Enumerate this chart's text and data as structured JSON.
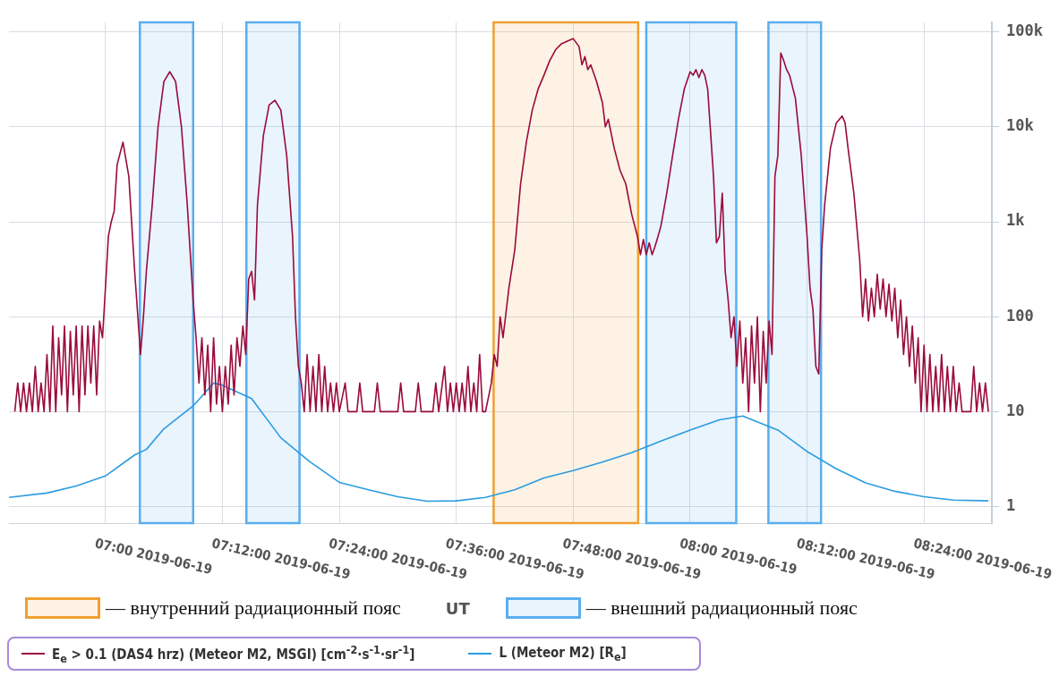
{
  "chart_data": {
    "type": "line",
    "xlabel": "UT",
    "log": "y",
    "grid": true,
    "legend": "bottom",
    "xlim": [
      "2019-06-19T06:50:06",
      "2019-06-19T08:30:58"
    ],
    "xticks": [
      {
        "value": "2019-06-19T07:00",
        "label": "07:00 2019-06-19"
      },
      {
        "value": "2019-06-19T07:12",
        "label": "07:12:00 2019-06-19"
      },
      {
        "value": "2019-06-19T07:24",
        "label": "07:24:00 2019-06-19"
      },
      {
        "value": "2019-06-19T07:36",
        "label": "07:36:00 2019-06-19"
      },
      {
        "value": "2019-06-19T07:48",
        "label": "07:48:00 2019-06-19"
      },
      {
        "value": "2019-06-19T08:00",
        "label": "08:00 2019-06-19"
      },
      {
        "value": "2019-06-19T08:12",
        "label": "08:12:00 2019-06-19"
      },
      {
        "value": "2019-06-19T08:24",
        "label": "08:24:00 2019-06-19"
      }
    ],
    "ylim": [
      0.67,
      126000
    ],
    "yticks": [
      1,
      10,
      100,
      {
        "value": 1000,
        "label": "1k"
      },
      {
        "value": 10000,
        "label": "10k"
      },
      {
        "value": 100000,
        "label": "100k"
      }
    ],
    "bands": [
      {
        "axis": "x",
        "from": "2019-06-19T07:39:50",
        "to": "2019-06-19T07:54:40",
        "label": "— внутренний радиационный пояс",
        "color": "#f0a030"
      },
      {
        "axis": "x",
        "from": "2019-06-19T07:03:32",
        "to": "2019-06-19T07:09:00",
        "label": "— внешний радиационный пояс",
        "color": "#5aaef0"
      },
      {
        "axis": "x",
        "from": "2019-06-19T07:14:28",
        "to": "2019-06-19T07:19:55",
        "color": "#5aaef0"
      },
      {
        "axis": "x",
        "from": "2019-06-19T07:55:30",
        "to": "2019-06-19T08:04:44",
        "color": "#5aaef0"
      },
      {
        "axis": "x",
        "from": "2019-06-19T08:08:02",
        "to": "2019-06-19T08:13:26",
        "color": "#5aaef0"
      }
    ],
    "series": [
      {
        "name": "E$_{e}$ > 0.1 (DAS4 hrz) (Meteor M2, MSGI) [cm$^{-2}$·s$^{-1}$·sr$^{-1}$]",
        "color": "#9a0a3c",
        "x": [
          "2019-06-19T06:50:42",
          "2019-06-19T06:51:00",
          "2019-06-19T06:51:18",
          "2019-06-19T06:51:36",
          "2019-06-19T06:51:54",
          "2019-06-19T06:52:12",
          "2019-06-19T06:52:30",
          "2019-06-19T06:52:48",
          "2019-06-19T06:53:06",
          "2019-06-19T06:53:24",
          "2019-06-19T06:53:42",
          "2019-06-19T06:54:00",
          "2019-06-19T06:54:18",
          "2019-06-19T06:54:36",
          "2019-06-19T06:54:54",
          "2019-06-19T06:55:12",
          "2019-06-19T06:55:30",
          "2019-06-19T06:55:48",
          "2019-06-19T06:56:06",
          "2019-06-19T06:56:24",
          "2019-06-19T06:56:42",
          "2019-06-19T06:57:00",
          "2019-06-19T06:57:18",
          "2019-06-19T06:57:36",
          "2019-06-19T06:57:54",
          "2019-06-19T06:58:12",
          "2019-06-19T06:58:30",
          "2019-06-19T06:58:48",
          "2019-06-19T06:59:06",
          "2019-06-19T06:59:24",
          "2019-06-19T06:59:42",
          "2019-06-19T07:00:00",
          "2019-06-19T07:00:18",
          "2019-06-19T07:00:36",
          "2019-06-19T07:00:54",
          "2019-06-19T07:01:12",
          "2019-06-19T07:01:48",
          "2019-06-19T07:02:24",
          "2019-06-19T07:03:00",
          "2019-06-19T07:03:36",
          "2019-06-19T07:03:54",
          "2019-06-19T07:04:12",
          "2019-06-19T07:04:48",
          "2019-06-19T07:05:24",
          "2019-06-19T07:06:00",
          "2019-06-19T07:06:36",
          "2019-06-19T07:07:12",
          "2019-06-19T07:07:48",
          "2019-06-19T07:08:24",
          "2019-06-19T07:09:00",
          "2019-06-19T07:09:18",
          "2019-06-19T07:09:36",
          "2019-06-19T07:09:54",
          "2019-06-19T07:10:12",
          "2019-06-19T07:10:30",
          "2019-06-19T07:10:48",
          "2019-06-19T07:11:06",
          "2019-06-19T07:11:24",
          "2019-06-19T07:11:42",
          "2019-06-19T07:12:00",
          "2019-06-19T07:12:18",
          "2019-06-19T07:12:36",
          "2019-06-19T07:12:54",
          "2019-06-19T07:13:12",
          "2019-06-19T07:13:30",
          "2019-06-19T07:13:48",
          "2019-06-19T07:14:06",
          "2019-06-19T07:14:24",
          "2019-06-19T07:14:42",
          "2019-06-19T07:15:00",
          "2019-06-19T07:15:18",
          "2019-06-19T07:15:36",
          "2019-06-19T07:16:12",
          "2019-06-19T07:16:48",
          "2019-06-19T07:17:24",
          "2019-06-19T07:18:00",
          "2019-06-19T07:18:36",
          "2019-06-19T07:19:12",
          "2019-06-19T07:19:30",
          "2019-06-19T07:19:48",
          "2019-06-19T07:20:06",
          "2019-06-19T07:20:24",
          "2019-06-19T07:20:42",
          "2019-06-19T07:21:00",
          "2019-06-19T07:21:18",
          "2019-06-19T07:21:36",
          "2019-06-19T07:21:54",
          "2019-06-19T07:22:12",
          "2019-06-19T07:22:30",
          "2019-06-19T07:22:48",
          "2019-06-19T07:23:06",
          "2019-06-19T07:23:24",
          "2019-06-19T07:23:42",
          "2019-06-19T07:24:00",
          "2019-06-19T07:24:36",
          "2019-06-19T07:24:54",
          "2019-06-19T07:25:48",
          "2019-06-19T07:26:06",
          "2019-06-19T07:26:24",
          "2019-06-19T07:27:36",
          "2019-06-19T07:27:54",
          "2019-06-19T07:28:12",
          "2019-06-19T07:30:00",
          "2019-06-19T07:30:18",
          "2019-06-19T07:30:36",
          "2019-06-19T07:31:48",
          "2019-06-19T07:32:06",
          "2019-06-19T07:32:24",
          "2019-06-19T07:33:36",
          "2019-06-19T07:33:54",
          "2019-06-19T07:34:12",
          "2019-06-19T07:34:48",
          "2019-06-19T07:35:06",
          "2019-06-19T07:35:24",
          "2019-06-19T07:35:42",
          "2019-06-19T07:36:00",
          "2019-06-19T07:36:18",
          "2019-06-19T07:36:36",
          "2019-06-19T07:36:54",
          "2019-06-19T07:37:12",
          "2019-06-19T07:37:30",
          "2019-06-19T07:37:48",
          "2019-06-19T07:38:06",
          "2019-06-19T07:38:24",
          "2019-06-19T07:38:42",
          "2019-06-19T07:39:00",
          "2019-06-19T07:39:36",
          "2019-06-19T07:39:54",
          "2019-06-19T07:40:12",
          "2019-06-19T07:40:30",
          "2019-06-19T07:40:48",
          "2019-06-19T07:41:24",
          "2019-06-19T07:42:00",
          "2019-06-19T07:42:36",
          "2019-06-19T07:43:12",
          "2019-06-19T07:43:48",
          "2019-06-19T07:44:24",
          "2019-06-19T07:45:00",
          "2019-06-19T07:45:36",
          "2019-06-19T07:46:12",
          "2019-06-19T07:46:48",
          "2019-06-19T07:47:24",
          "2019-06-19T07:48:00",
          "2019-06-19T07:48:36",
          "2019-06-19T07:48:54",
          "2019-06-19T07:49:12",
          "2019-06-19T07:49:30",
          "2019-06-19T07:49:48",
          "2019-06-19T07:50:24",
          "2019-06-19T07:51:00",
          "2019-06-19T07:51:18",
          "2019-06-19T07:51:36",
          "2019-06-19T07:52:12",
          "2019-06-19T07:52:48",
          "2019-06-19T07:53:24",
          "2019-06-19T07:54:00",
          "2019-06-19T07:54:36",
          "2019-06-19T07:54:54",
          "2019-06-19T07:55:12",
          "2019-06-19T07:55:30",
          "2019-06-19T07:55:48",
          "2019-06-19T07:56:06",
          "2019-06-19T07:56:24",
          "2019-06-19T07:56:42",
          "2019-06-19T07:57:00",
          "2019-06-19T07:57:36",
          "2019-06-19T07:58:12",
          "2019-06-19T07:58:48",
          "2019-06-19T07:59:24",
          "2019-06-19T08:00:00",
          "2019-06-19T08:00:18",
          "2019-06-19T08:00:36",
          "2019-06-19T08:00:54",
          "2019-06-19T08:01:12",
          "2019-06-19T08:01:30",
          "2019-06-19T08:01:48",
          "2019-06-19T08:02:24",
          "2019-06-19T08:02:42",
          "2019-06-19T08:03:00",
          "2019-06-19T08:03:18",
          "2019-06-19T08:03:36",
          "2019-06-19T08:03:54",
          "2019-06-19T08:04:12",
          "2019-06-19T08:04:30",
          "2019-06-19T08:04:48",
          "2019-06-19T08:05:06",
          "2019-06-19T08:05:24",
          "2019-06-19T08:05:42",
          "2019-06-19T08:06:00",
          "2019-06-19T08:06:18",
          "2019-06-19T08:06:36",
          "2019-06-19T08:06:54",
          "2019-06-19T08:07:12",
          "2019-06-19T08:07:30",
          "2019-06-19T08:07:48",
          "2019-06-19T08:08:06",
          "2019-06-19T08:08:24",
          "2019-06-19T08:08:42",
          "2019-06-19T08:09:00",
          "2019-06-19T08:09:18",
          "2019-06-19T08:09:36",
          "2019-06-19T08:09:54",
          "2019-06-19T08:10:12",
          "2019-06-19T08:10:48",
          "2019-06-19T08:11:24",
          "2019-06-19T08:12:00",
          "2019-06-19T08:12:18",
          "2019-06-19T08:12:36",
          "2019-06-19T08:12:54",
          "2019-06-19T08:13:12",
          "2019-06-19T08:13:30",
          "2019-06-19T08:13:48",
          "2019-06-19T08:14:24",
          "2019-06-19T08:15:00",
          "2019-06-19T08:15:36",
          "2019-06-19T08:15:54",
          "2019-06-19T08:16:12",
          "2019-06-19T08:16:48",
          "2019-06-19T08:17:24",
          "2019-06-19T08:17:42",
          "2019-06-19T08:18:00",
          "2019-06-19T08:18:18",
          "2019-06-19T08:18:36",
          "2019-06-19T08:18:54",
          "2019-06-19T08:19:12",
          "2019-06-19T08:19:30",
          "2019-06-19T08:19:48",
          "2019-06-19T08:20:06",
          "2019-06-19T08:20:24",
          "2019-06-19T08:20:42",
          "2019-06-19T08:21:00",
          "2019-06-19T08:21:18",
          "2019-06-19T08:21:36",
          "2019-06-19T08:21:54",
          "2019-06-19T08:22:12",
          "2019-06-19T08:22:30",
          "2019-06-19T08:22:48",
          "2019-06-19T08:23:06",
          "2019-06-19T08:23:24",
          "2019-06-19T08:23:42",
          "2019-06-19T08:24:00",
          "2019-06-19T08:24:18",
          "2019-06-19T08:24:36",
          "2019-06-19T08:24:54",
          "2019-06-19T08:25:12",
          "2019-06-19T08:25:30",
          "2019-06-19T08:25:48",
          "2019-06-19T08:26:06",
          "2019-06-19T08:26:24",
          "2019-06-19T08:26:42",
          "2019-06-19T08:27:00",
          "2019-06-19T08:27:18",
          "2019-06-19T08:27:36",
          "2019-06-19T08:27:54",
          "2019-06-19T08:28:48",
          "2019-06-19T08:29:06",
          "2019-06-19T08:29:24",
          "2019-06-19T08:29:42",
          "2019-06-19T08:30:00",
          "2019-06-19T08:30:18",
          "2019-06-19T08:30:36"
        ],
        "values": [
          10,
          20,
          10,
          20,
          10,
          20,
          10,
          30,
          10,
          20,
          10,
          40,
          10,
          80,
          10,
          60,
          15,
          80,
          10,
          70,
          15,
          80,
          10,
          80,
          15,
          80,
          20,
          80,
          15,
          90,
          60,
          200,
          700,
          1000,
          1300,
          4000,
          6900,
          3000,
          300,
          40,
          100,
          300,
          1500,
          10000,
          30000,
          38000,
          30000,
          10000,
          1500,
          150,
          60,
          20,
          60,
          15,
          50,
          10,
          60,
          12,
          30,
          10,
          30,
          12,
          50,
          15,
          60,
          30,
          80,
          40,
          250,
          300,
          150,
          1500,
          8000,
          17000,
          19000,
          15000,
          5000,
          700,
          100,
          30,
          20,
          10,
          40,
          10,
          30,
          10,
          40,
          10,
          30,
          10,
          20,
          10,
          20,
          10,
          20,
          10,
          10,
          20,
          10,
          10,
          20,
          10,
          10,
          20,
          10,
          10,
          20,
          10,
          10,
          20,
          10,
          30,
          10,
          20,
          10,
          20,
          10,
          20,
          10,
          30,
          10,
          20,
          10,
          40,
          10,
          10,
          20,
          40,
          30,
          100,
          60,
          200,
          500,
          2500,
          7000,
          15000,
          25000,
          35000,
          50000,
          65000,
          75000,
          80000,
          85000,
          70000,
          45000,
          55000,
          40000,
          45000,
          30000,
          18000,
          10000,
          12000,
          6000,
          3500,
          2500,
          1200,
          700,
          450,
          650,
          450,
          600,
          450,
          550,
          700,
          900,
          2000,
          5000,
          12000,
          25000,
          38000,
          35000,
          40000,
          33000,
          40000,
          35000,
          25000,
          3000,
          600,
          700,
          2000,
          300,
          150,
          60,
          100,
          30,
          90,
          20,
          60,
          10,
          80,
          20,
          100,
          10,
          70,
          20,
          90,
          40,
          3000,
          5000,
          60000,
          50000,
          40000,
          35000,
          20000,
          5000,
          700,
          200,
          120,
          30,
          25,
          500,
          1500,
          6000,
          11000,
          13000,
          11000,
          6000,
          2000,
          400,
          100,
          250,
          90,
          200,
          100,
          280,
          120,
          250,
          100,
          220,
          90,
          200,
          60,
          150,
          40,
          100,
          30,
          80,
          20,
          60,
          10,
          50,
          10,
          40,
          10,
          30,
          10,
          40,
          10,
          30,
          10,
          30,
          10,
          20,
          10,
          10,
          30,
          10,
          20,
          10,
          20,
          10
        ]
      },
      {
        "name": "L (Meteor M2) [R$_{e}$]",
        "color": "#2b9be0",
        "x": [
          "2019-06-19T06:50:06",
          "2019-06-19T06:54:00",
          "2019-06-19T06:57:00",
          "2019-06-19T07:00:00",
          "2019-06-19T07:03:00",
          "2019-06-19T07:04:12",
          "2019-06-19T07:06:00",
          "2019-06-19T07:09:00",
          "2019-06-19T07:11:06",
          "2019-06-19T07:12:00",
          "2019-06-19T07:15:00",
          "2019-06-19T07:18:00",
          "2019-06-19T07:21:00",
          "2019-06-19T07:24:00",
          "2019-06-19T07:27:00",
          "2019-06-19T07:30:00",
          "2019-06-19T07:33:00",
          "2019-06-19T07:36:00",
          "2019-06-19T07:39:00",
          "2019-06-19T07:42:00",
          "2019-06-19T07:45:00",
          "2019-06-19T07:48:00",
          "2019-06-19T07:51:00",
          "2019-06-19T07:54:00",
          "2019-06-19T07:57:00",
          "2019-06-19T08:00:00",
          "2019-06-19T08:03:00",
          "2019-06-19T08:05:24",
          "2019-06-19T08:09:00",
          "2019-06-19T08:12:00",
          "2019-06-19T08:15:00",
          "2019-06-19T08:18:00",
          "2019-06-19T08:21:00",
          "2019-06-19T08:24:00",
          "2019-06-19T08:27:00",
          "2019-06-19T08:30:36"
        ],
        "values": [
          1.25,
          1.39,
          1.65,
          2.1,
          3.5,
          4.0,
          6.6,
          11.5,
          20,
          19,
          13.7,
          5.3,
          2.95,
          1.8,
          1.5,
          1.27,
          1.14,
          1.15,
          1.25,
          1.5,
          2.0,
          2.4,
          2.95,
          3.7,
          4.9,
          6.4,
          8.2,
          9.0,
          6.4,
          3.8,
          2.5,
          1.78,
          1.45,
          1.27,
          1.17,
          1.15
        ]
      }
    ]
  }
}
